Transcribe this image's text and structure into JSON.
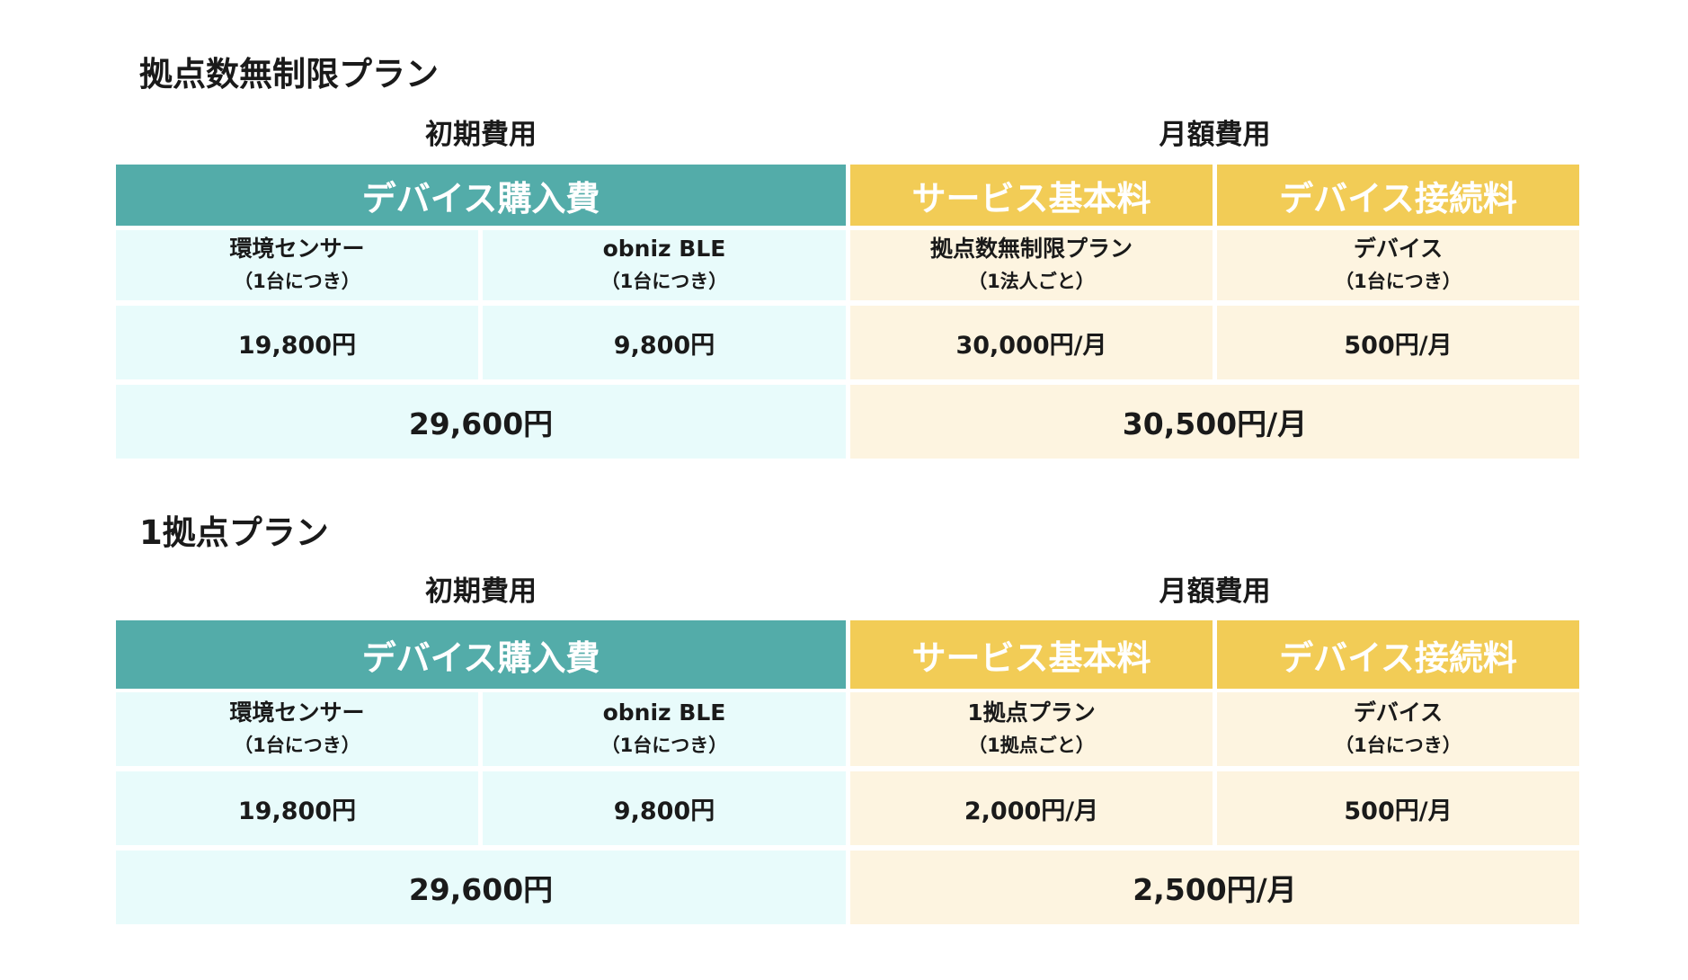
{
  "plans": [
    {
      "title": "拠点数無制限プラン",
      "initial_label": "初期費用",
      "monthly_label": "月額費用",
      "device_purchase_header": "デバイス購入費",
      "service_fee_header": "サービス基本料",
      "device_connect_header": "デバイス接続料",
      "items": [
        {
          "name": "環境センサー",
          "note": "（1台につき）",
          "price": "19,800円"
        },
        {
          "name": "obniz BLE",
          "note": "（1台につき）",
          "price": "9,800円"
        },
        {
          "name": "拠点数無制限プラン",
          "note": "（1法人ごと）",
          "price": "30,000円/月"
        },
        {
          "name": "デバイス",
          "note": "（1台につき）",
          "price": "500円/月"
        }
      ],
      "initial_total": "29,600円",
      "monthly_total": "30,500円/月"
    },
    {
      "title": "1拠点プラン",
      "initial_label": "初期費用",
      "monthly_label": "月額費用",
      "device_purchase_header": "デバイス購入費",
      "service_fee_header": "サービス基本料",
      "device_connect_header": "デバイス接続料",
      "items": [
        {
          "name": "環境センサー",
          "note": "（1台につき）",
          "price": "19,800円"
        },
        {
          "name": "obniz BLE",
          "note": "（1台につき）",
          "price": "9,800円"
        },
        {
          "name": "1拠点プラン",
          "note": "（1拠点ごと）",
          "price": "2,000円/月"
        },
        {
          "name": "デバイス",
          "note": "（1台につき）",
          "price": "500円/月"
        }
      ],
      "initial_total": "29,600円",
      "monthly_total": "2,500円/月"
    }
  ]
}
